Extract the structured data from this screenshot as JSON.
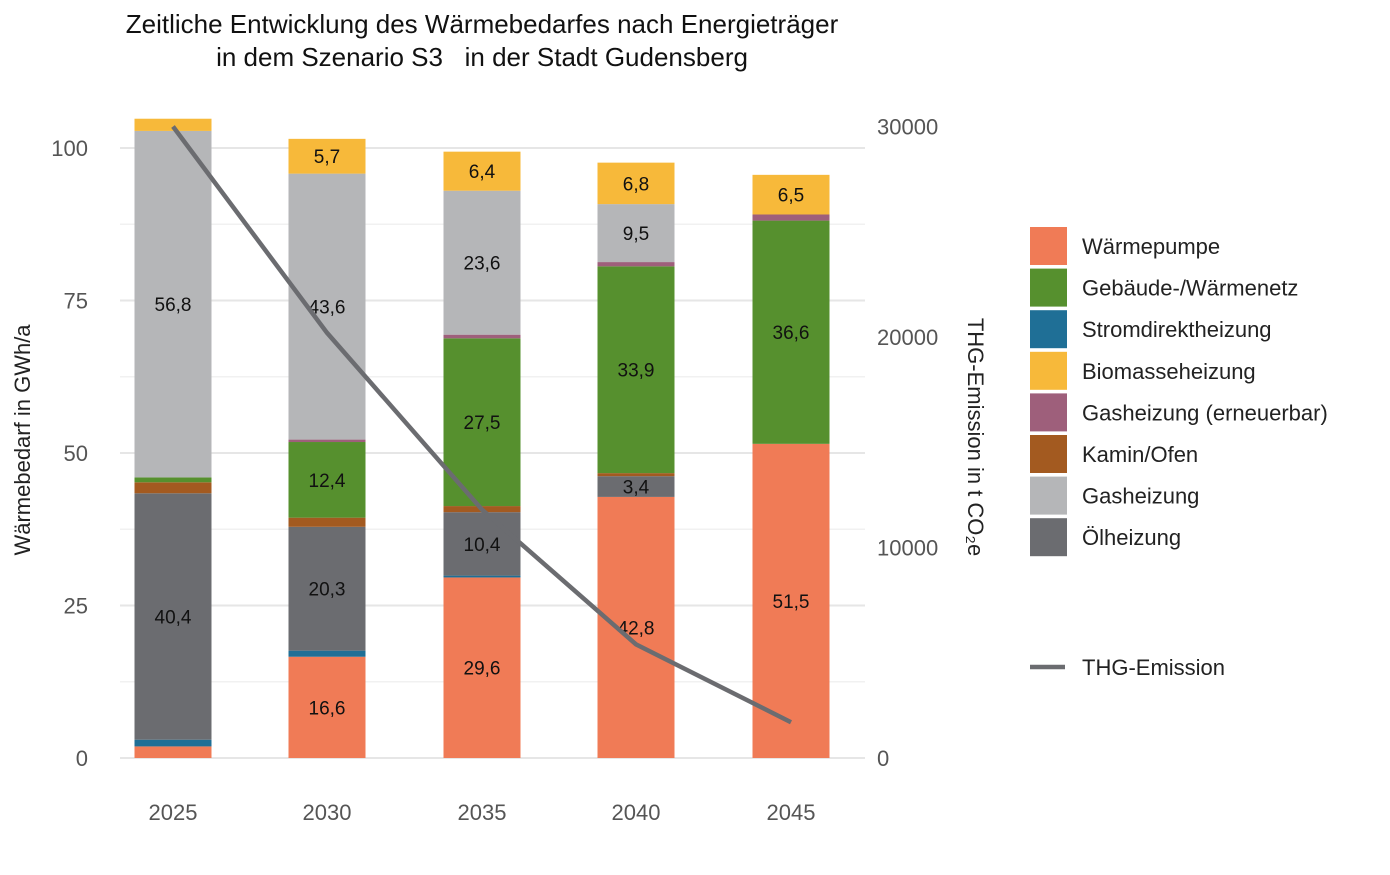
{
  "chart_data": {
    "type": "bar",
    "stacked": true,
    "title": [
      "Zeitliche Entwicklung des Wärmebedarfes nach Energieträger",
      "in dem Szenario S3   in der Stadt Gudensberg"
    ],
    "categories": [
      "2025",
      "2030",
      "2035",
      "2040",
      "2045"
    ],
    "ylabel": "Wärmebedarf in GWh/a",
    "ylim": [
      0,
      105
    ],
    "yticks": [
      0,
      25,
      50,
      75,
      100
    ],
    "y2label": "THG-Emission in t CO₂e",
    "y2lim": [
      0,
      34500
    ],
    "y2ticks": [
      0,
      10000,
      20000,
      30000
    ],
    "grid": true,
    "legend_position": "right",
    "series": [
      {
        "name": "Ölheizung",
        "color": "#6b6c70",
        "values": [
          40.4,
          20.3,
          10.4,
          3.4,
          0
        ]
      },
      {
        "name": "Stromdirektheizung",
        "color": "#1f6f96",
        "values": [
          1.1,
          1.0,
          0.3,
          0,
          0
        ]
      },
      {
        "name": "Wärmepumpe",
        "color": "#f07b56",
        "values": [
          1.9,
          16.6,
          29.6,
          42.8,
          51.5
        ]
      },
      {
        "name": "Kamin/Ofen",
        "color": "#a35a20",
        "values": [
          1.8,
          1.5,
          1.0,
          0.5,
          0
        ]
      },
      {
        "name": "Gebäude-/Wärmenetz",
        "color": "#56902e",
        "values": [
          0.8,
          12.4,
          27.5,
          33.9,
          36.6
        ]
      },
      {
        "name": "Gasheizung (erneuerbar)",
        "color": "#9e5f7b",
        "values": [
          0,
          0.4,
          0.6,
          0.7,
          1.0
        ]
      },
      {
        "name": "Gasheizung",
        "color": "#b5b6b8",
        "values": [
          56.8,
          43.6,
          23.6,
          9.5,
          0
        ]
      },
      {
        "name": "Biomasseheizung",
        "color": "#f7b93a",
        "values": [
          2.0,
          5.7,
          6.4,
          6.8,
          6.5
        ]
      }
    ],
    "stack_order": [
      "Wärmepumpe",
      "Stromdirektheizung",
      "Ölheizung",
      "Kamin/Ofen",
      "Gebäude-/Wärmenetz",
      "Gasheizung (erneuerbar)",
      "Gasheizung",
      "Biomasseheizung"
    ],
    "legend_order": [
      "Wärmepumpe",
      "Gebäude-/Wärmenetz",
      "Stromdirektheizung",
      "Biomasseheizung",
      "Gasheizung (erneuerbar)",
      "Kamin/Ofen",
      "Gasheizung",
      "Ölheizung"
    ],
    "line": {
      "name": "THG-Emission",
      "color": "#6b6c70",
      "axis": "right",
      "values": [
        30000,
        20200,
        11800,
        5400,
        1700
      ]
    }
  }
}
